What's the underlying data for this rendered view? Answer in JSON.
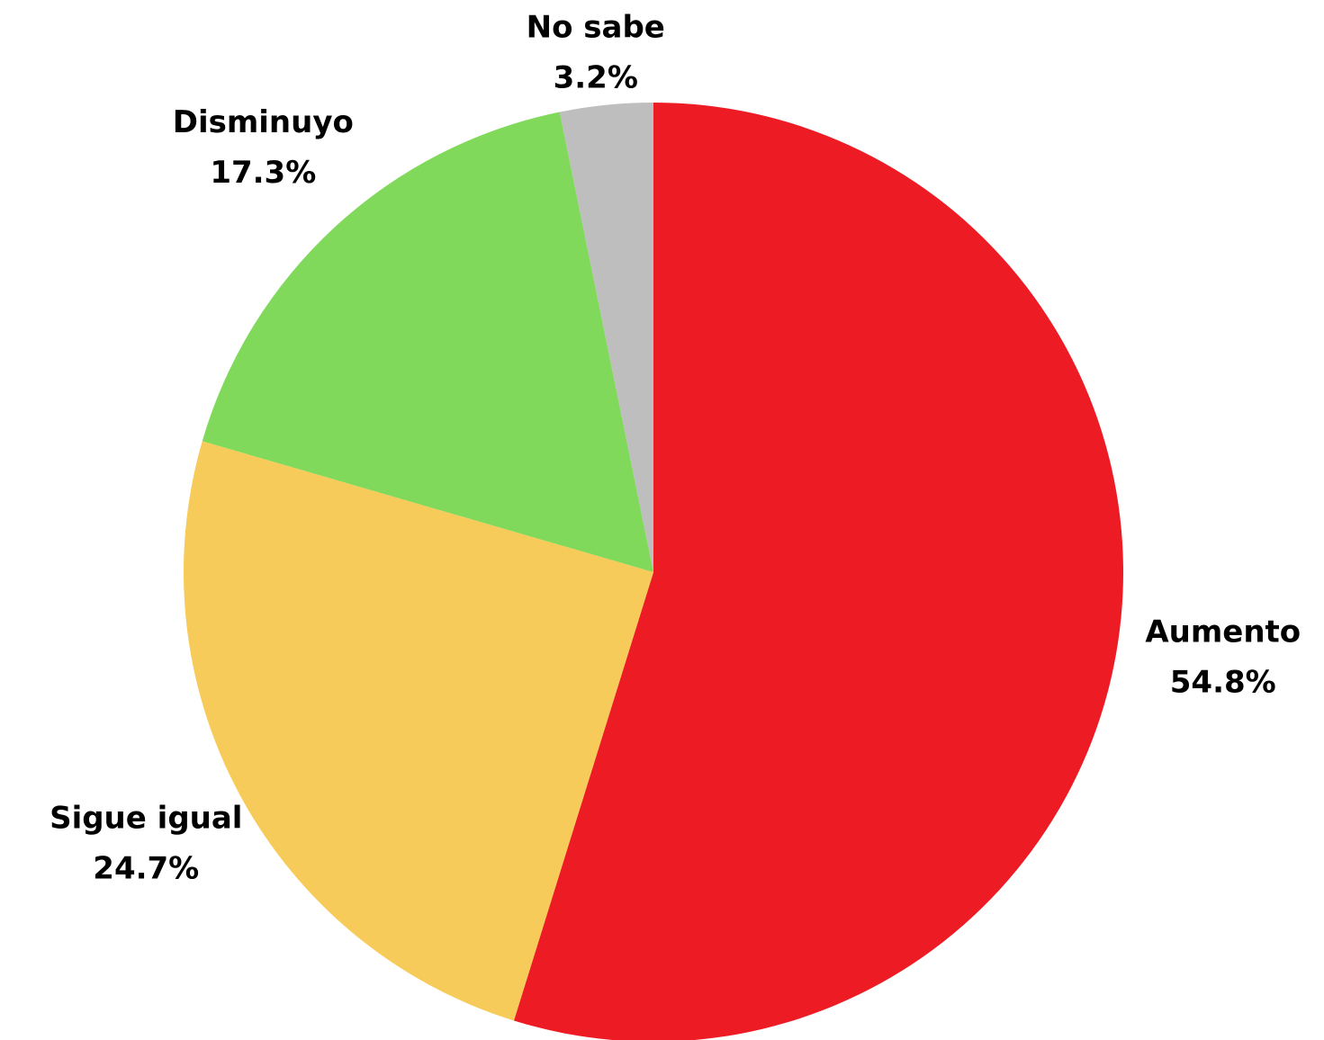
{
  "chart_data": {
    "type": "pie",
    "categories": [
      "Aumento",
      "Sigue igual",
      "Disminuyo",
      "No sabe"
    ],
    "values": [
      54.8,
      24.7,
      17.3,
      3.2
    ],
    "value_labels": [
      "54.8%",
      "24.7%",
      "17.3%",
      "3.2%"
    ],
    "colors": [
      "#ED1C24",
      "#F7CB59",
      "#80D95A",
      "#BEBEBE"
    ]
  }
}
